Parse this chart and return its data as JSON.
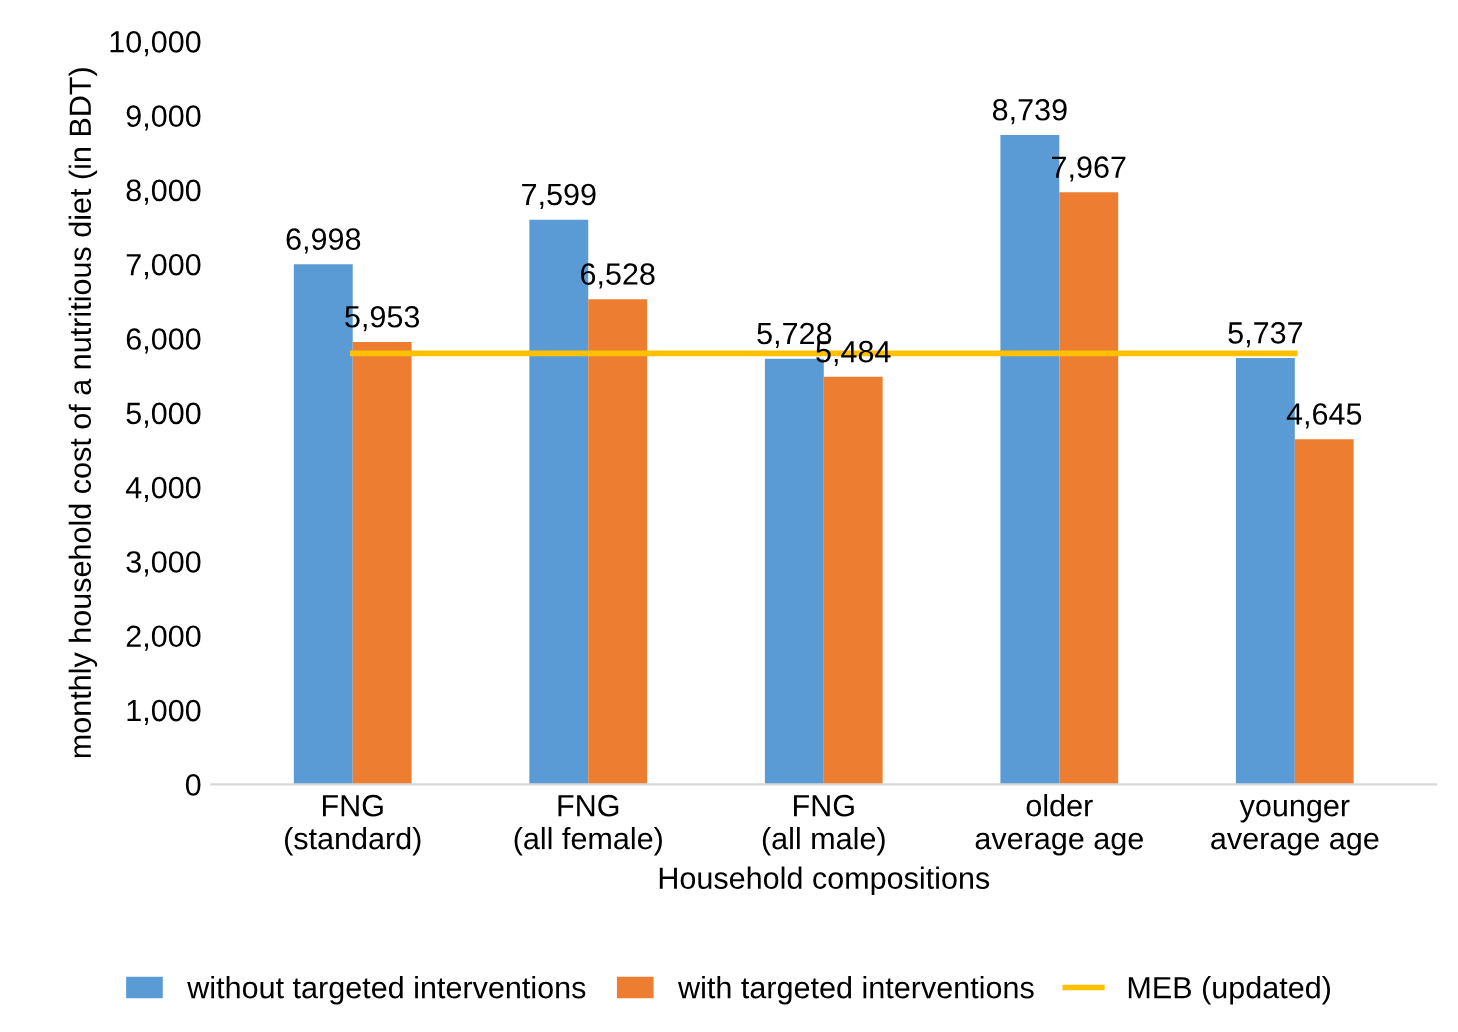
{
  "chart_data": {
    "type": "bar",
    "xlabel": "Household compositions",
    "ylabel": "monthly household cost of a nutritious diet (in BDT)",
    "categories": [
      "FNG\n(standard)",
      "FNG\n(all female)",
      "FNG\n(all male)",
      "older\naverage age",
      "younger\naverage age"
    ],
    "series": [
      {
        "name": "without targeted interventions",
        "color": "#5b9bd5",
        "values": [
          6998,
          7599,
          5728,
          8739,
          5737
        ],
        "value_labels": [
          "6,998",
          "7,599",
          "5,728",
          "8,739",
          "5,737"
        ]
      },
      {
        "name": "with targeted interventions",
        "color": "#ed7d31",
        "values": [
          5953,
          6528,
          5484,
          7967,
          4645
        ],
        "value_labels": [
          "5,953",
          "6,528",
          "5,484",
          "7,967",
          "4,645"
        ]
      },
      {
        "name": "MEB (updated)",
        "type": "line",
        "color": "#ffc000",
        "values": [
          5800,
          5800,
          5800,
          5800,
          5800
        ],
        "marker": "none"
      }
    ],
    "ylim": [
      0,
      10000
    ],
    "yticks": [
      {
        "value": 0,
        "label": "0"
      },
      {
        "value": 1000,
        "label": "1,000"
      },
      {
        "value": 2000,
        "label": "2,000"
      },
      {
        "value": 3000,
        "label": "3,000"
      },
      {
        "value": 4000,
        "label": "4,000"
      },
      {
        "value": 5000,
        "label": "5,000"
      },
      {
        "value": 6000,
        "label": "6,000"
      },
      {
        "value": 7000,
        "label": "7,000"
      },
      {
        "value": 8000,
        "label": "8,000"
      },
      {
        "value": 9000,
        "label": "9,000"
      },
      {
        "value": 10000,
        "label": "10,000"
      }
    ],
    "grid": false,
    "legend": "bottom"
  }
}
